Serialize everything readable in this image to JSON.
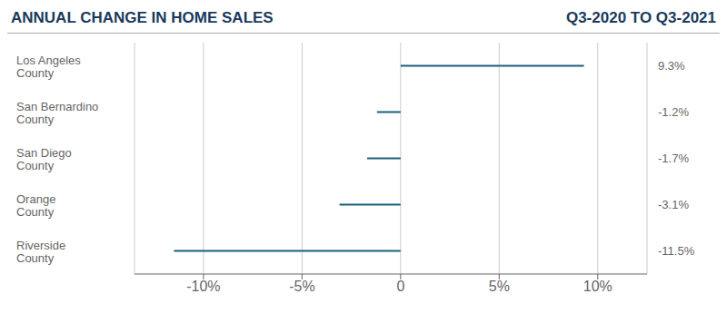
{
  "chart_data": {
    "type": "bar",
    "orientation": "horizontal",
    "title": "ANNUAL CHANGE IN HOME SALES",
    "subtitle": "Q3-2020 TO Q3-2021",
    "categories": [
      "Los Angeles\nCounty",
      "San Bernardino\nCounty",
      "San Diego\nCounty",
      "Orange\nCounty",
      "Riverside\nCounty"
    ],
    "values": [
      9.3,
      -1.2,
      -1.7,
      -3.1,
      -11.5
    ],
    "value_labels": [
      "9.3%",
      "-1.2%",
      "-1.7%",
      "-3.1%",
      "-11.5%"
    ],
    "data_labels": true,
    "color": "#1d5f7a",
    "xlim": [
      -13.5,
      12.5
    ],
    "xticks": [
      {
        "value": -10,
        "label": "-10%"
      },
      {
        "value": -5,
        "label": "-5%"
      },
      0,
      {
        "value": 5,
        "label": "5%"
      },
      {
        "value": 10,
        "label": "10%"
      }
    ],
    "grid": true
  }
}
